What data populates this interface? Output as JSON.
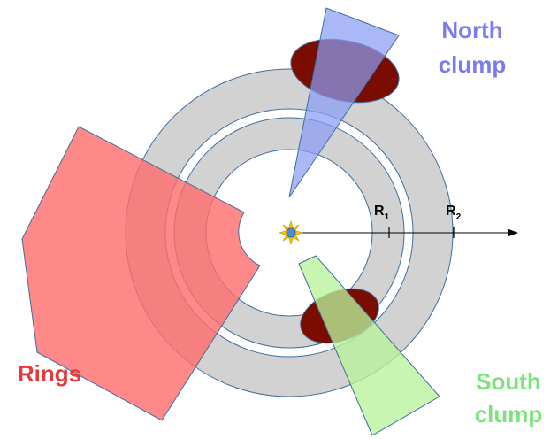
{
  "labels": {
    "north_line1": "North",
    "north_line2": "clump",
    "south_line1": "South",
    "south_line2": "clump",
    "rings": "Rings",
    "r1_main": "R",
    "r1_sub": "1",
    "r2_main": "R",
    "r2_sub": "2"
  },
  "colors": {
    "ring_fill": "#d2d2d2",
    "ring_stroke": "#3e6e9e",
    "north_clump": "#8a9cf5",
    "south_clump": "#b8f29a",
    "rings_wedge": "#ff6b6b",
    "blob": "#7a0c00",
    "north_text": "#7b7bf0",
    "south_text": "#7ce37c",
    "rings_text": "#e63a3a",
    "star": "#f5c400",
    "star_core": "#4a8ed8"
  },
  "icons": {
    "star": "star-icon",
    "axis_arrow": "arrow-right-icon"
  }
}
